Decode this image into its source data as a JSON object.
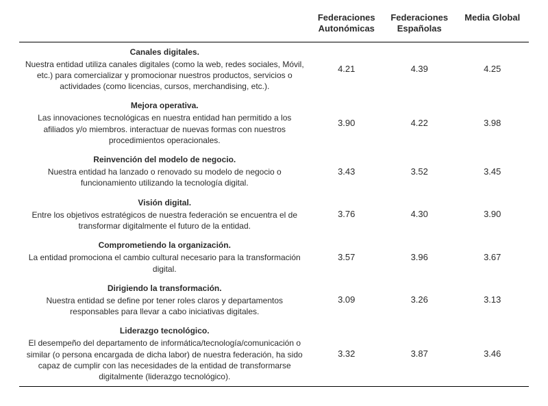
{
  "headers": {
    "col1": "",
    "col2": "Federaciones Autonómicas",
    "col3": "Federaciones Españolas",
    "col4": "Media Global"
  },
  "rows": [
    {
      "title": "Canales digitales.",
      "description": "Nuestra entidad utiliza canales digitales (como la web, redes sociales, Móvil, etc.) para comercializar y promocionar nuestros productos, servicios o actividades (como licencias, cursos, merchandising, etc.).",
      "v1": "4.21",
      "v2": "4.39",
      "v3": "4.25"
    },
    {
      "title": "Mejora operativa.",
      "description": "Las innovaciones tecnológicas en nuestra entidad han permitido a los afiliados y/o miembros. interactuar de nuevas formas con nuestros procedimientos operacionales.",
      "v1": "3.90",
      "v2": "4.22",
      "v3": "3.98"
    },
    {
      "title": "Reinvención del modelo de negocio.",
      "description": "Nuestra entidad ha lanzado o renovado su modelo de negocio o funcionamiento utilizando la tecnología digital.",
      "v1": "3.43",
      "v2": "3.52",
      "v3": "3.45"
    },
    {
      "title": "Visión digital.",
      "description": "Entre los objetivos estratégicos de nuestra federación se encuentra el de transformar digitalmente el futuro de la entidad.",
      "v1": "3.76",
      "v2": "4.30",
      "v3": "3.90"
    },
    {
      "title": "Comprometiendo la organización.",
      "description": "La entidad promociona el cambio cultural necesario para la transformación digital.",
      "v1": "3.57",
      "v2": "3.96",
      "v3": "3.67"
    },
    {
      "title": "Dirigiendo la transformación.",
      "description": "Nuestra entidad se define por tener roles claros y departamentos responsables para llevar a cabo iniciativas digitales.",
      "v1": "3.09",
      "v2": "3.26",
      "v3": "3.13"
    },
    {
      "title": "Liderazgo tecnológico.",
      "description": "El desempeño del departamento de informática/tecnología/comunicación o similar (o persona encargada de dicha labor) de nuestra federación, ha sido capaz de cumplir con las necesidades de la entidad de transformarse digitalmente (liderazgo tecnológico).",
      "v1": "3.32",
      "v2": "3.87",
      "v3": "3.46"
    }
  ]
}
